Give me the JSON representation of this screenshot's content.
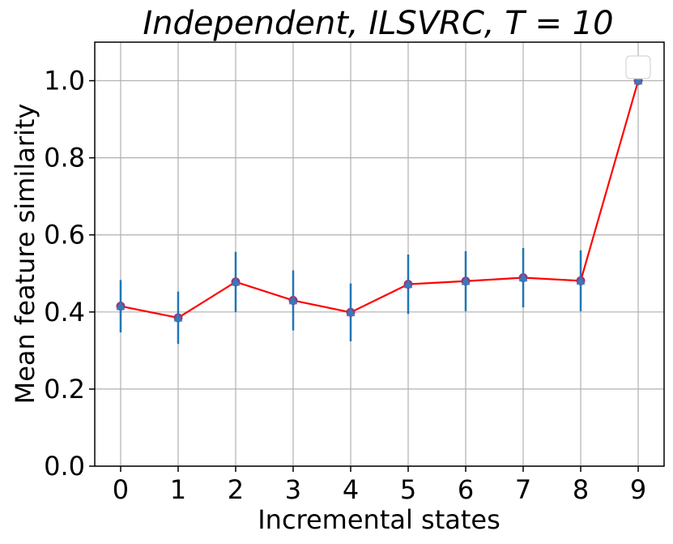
{
  "chart_data": {
    "type": "line",
    "title": "Independent, ILSVRC, T = 10",
    "xlabel": "Incremental states",
    "ylabel": "Mean feature similarity",
    "x": [
      0,
      1,
      2,
      3,
      4,
      5,
      6,
      7,
      8,
      9
    ],
    "values": [
      0.415,
      0.385,
      0.478,
      0.43,
      0.399,
      0.472,
      0.48,
      0.489,
      0.481,
      1.0
    ],
    "error": [
      0.068,
      0.068,
      0.078,
      0.078,
      0.075,
      0.077,
      0.078,
      0.077,
      0.079,
      0.003
    ],
    "xlim": [
      -0.45,
      9.45
    ],
    "ylim": [
      0.0,
      1.1
    ],
    "xticks": [
      "0",
      "1",
      "2",
      "3",
      "4",
      "5",
      "6",
      "7",
      "8",
      "9"
    ],
    "yticks": [
      "0.0",
      "0.2",
      "0.4",
      "0.6",
      "0.8",
      "1.0"
    ],
    "grid": true,
    "legend": "top-right",
    "colors": {
      "line": "#ff0000",
      "errorbar": "#1f77b4",
      "marker_circle": "#8a3f86",
      "marker_triangle": "#2f80bf",
      "grid": "#b0b0b0"
    }
  }
}
